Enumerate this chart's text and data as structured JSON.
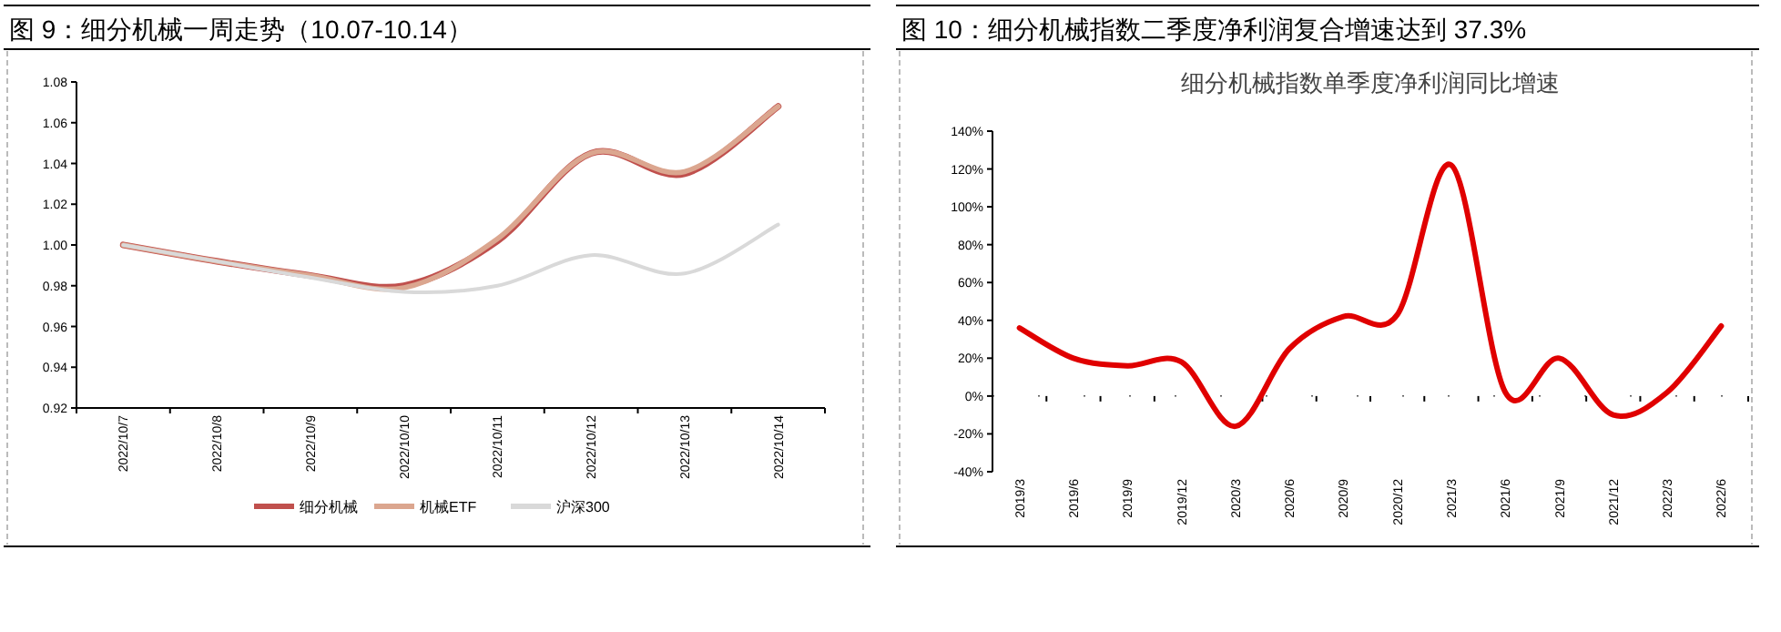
{
  "chart_data": [
    {
      "type": "line",
      "title": "图 9：细分机械一周走势（10.07-10.14）",
      "categories": [
        "2022/10/7",
        "2022/10/8",
        "2022/10/9",
        "2022/10/10",
        "2022/10/11",
        "2022/10/12",
        "2022/10/13",
        "2022/10/14"
      ],
      "series": [
        {
          "name": "细分机械",
          "color": "#c0504d",
          "values": [
            1.0,
            0.992,
            0.985,
            0.98,
            1.002,
            1.045,
            1.035,
            1.068
          ]
        },
        {
          "name": "机械ETF",
          "color": "#dba68f",
          "values": [
            1.0,
            0.992,
            0.985,
            0.979,
            1.003,
            1.045,
            1.036,
            1.068
          ]
        },
        {
          "name": "沪深300",
          "color": "#d9d9d9",
          "values": [
            1.0,
            0.992,
            0.984,
            0.977,
            0.98,
            0.995,
            0.986,
            1.01
          ]
        }
      ],
      "ylim": [
        0.92,
        1.08
      ],
      "yticks": [
        {
          "value": 0.92,
          "label": "0.92"
        },
        {
          "value": 0.94,
          "label": "0.94"
        },
        {
          "value": 0.96,
          "label": "0.96"
        },
        {
          "value": 0.98,
          "label": "0.98"
        },
        {
          "value": 1.0,
          "label": "1.00"
        },
        {
          "value": 1.02,
          "label": "1.02"
        },
        {
          "value": 1.04,
          "label": "1.04"
        },
        {
          "value": 1.06,
          "label": "1.06"
        },
        {
          "value": 1.08,
          "label": "1.08"
        }
      ],
      "legend": "bottom"
    },
    {
      "type": "line",
      "title": "图 10：细分机械指数二季度净利润复合增速达到 37.3%",
      "subtitle": "细分机械指数单季度净利润同比增速",
      "categories": [
        "2019/3",
        "2019/6",
        "2019/9",
        "2019/12",
        "2020/3",
        "2020/6",
        "2020/9",
        "2020/12",
        "2021/3",
        "2021/6",
        "2021/9",
        "2021/12",
        "2022/3",
        "2022/6"
      ],
      "series": [
        {
          "color": "#e00000",
          "values": [
            36,
            20,
            16,
            18,
            -16,
            25,
            42,
            43,
            122,
            2,
            20,
            -10,
            2,
            37
          ]
        }
      ],
      "ylim": [
        -40,
        140
      ],
      "yticks": [
        {
          "value": -40,
          "label": "-40%"
        },
        {
          "value": -20,
          "label": "-20%"
        },
        {
          "value": 0,
          "label": "0%"
        },
        {
          "value": 20,
          "label": "20%"
        },
        {
          "value": 40,
          "label": "40%"
        },
        {
          "value": 60,
          "label": "60%"
        },
        {
          "value": 80,
          "label": "80%"
        },
        {
          "value": 100,
          "label": "100%"
        },
        {
          "value": 120,
          "label": "120%"
        },
        {
          "value": 140,
          "label": "140%"
        }
      ]
    }
  ]
}
